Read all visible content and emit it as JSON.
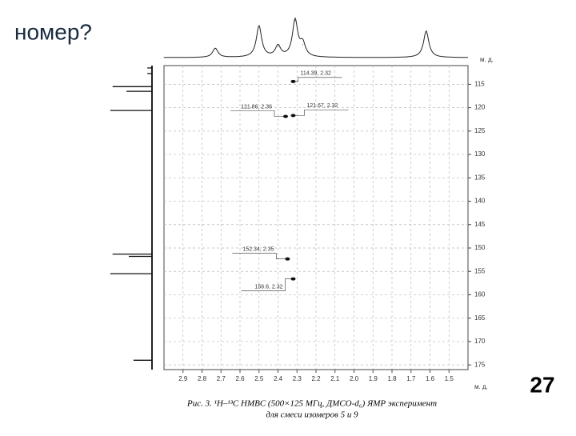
{
  "slide": {
    "title": "номер?",
    "page_number": "27"
  },
  "chart_data": {
    "type": "scatter",
    "x_unit": "м. д.",
    "y_unit": "м. д.",
    "caption": [
      "Рис. 3. ¹H–¹³C HMBC (500×125 МГц, ДМСО-d₆) ЯМР эксперимент",
      "для смеси изомеров 5 и 9"
    ],
    "x": [
      2.32,
      2.36,
      2.32,
      2.35,
      2.32
    ],
    "values": [
      114.39,
      121.86,
      121.67,
      152.34,
      156.6
    ],
    "value_labels": [
      "114.39, 2.32",
      "121.86, 2.36",
      "121.67, 2.32",
      "152.34, 2.35",
      "156.6, 2.32"
    ],
    "xlim": [
      3.0,
      1.4
    ],
    "xticks": [
      2.9,
      2.8,
      2.7,
      2.6,
      2.5,
      2.4,
      2.3,
      2.2,
      2.1,
      {
        "value": 2,
        "label": "2.0"
      },
      1.9,
      1.8,
      1.7,
      1.6,
      1.5
    ],
    "ylim": [
      111,
      176
    ],
    "yticks": [
      115,
      120,
      125,
      130,
      135,
      140,
      145,
      150,
      155,
      160,
      165,
      170,
      175
    ],
    "grid": true,
    "top_spectrum": {
      "peaks": [
        2.73,
        2.5,
        2.4,
        2.31,
        2.27,
        1.62
      ],
      "intensities": [
        0.25,
        0.85,
        0.3,
        1.0,
        0.35,
        0.72
      ]
    },
    "left_spectrum": {
      "peaks": [
        111.5,
        112.7,
        115.5,
        116.5,
        120.6,
        151.3,
        151.8,
        155.5,
        174
      ],
      "intensities": [
        0.1,
        0.1,
        0.85,
        0.55,
        0.9,
        0.85,
        0.5,
        0.9,
        0.4
      ]
    }
  }
}
